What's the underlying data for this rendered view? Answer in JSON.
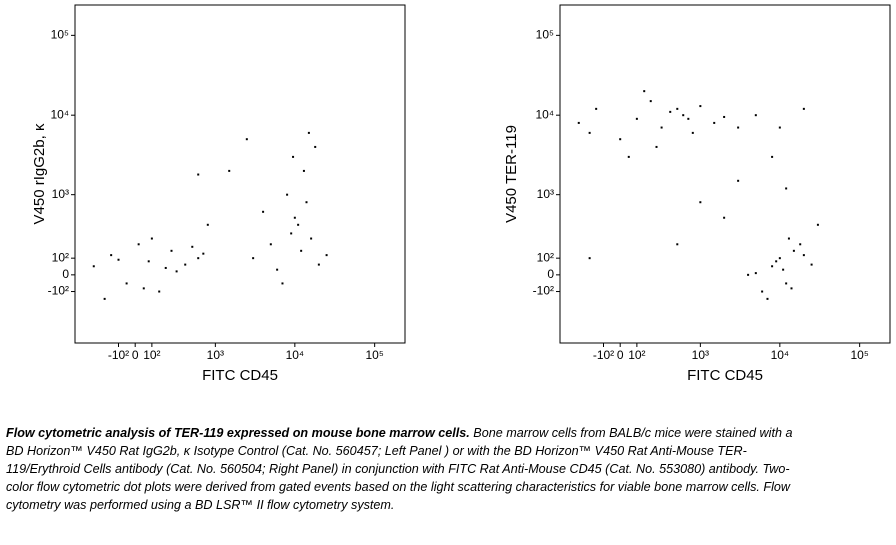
{
  "chart_data": [
    {
      "type": "scatter",
      "x_label": "FITC CD45",
      "y_label": "V450 rIgG2b, κ",
      "xscale": "biexponential",
      "yscale": "biexponential",
      "color": "#000000",
      "xlim": [
        -550,
        240000
      ],
      "ylim": [
        -700,
        240000
      ],
      "xticks": [
        {
          "value": -100,
          "label": "-10²"
        },
        0,
        {
          "value": 100,
          "label": "10²"
        },
        {
          "value": 1000,
          "label": "10³"
        },
        {
          "value": 10000,
          "label": "10⁴"
        },
        {
          "value": 100000,
          "label": "10⁵"
        }
      ],
      "yticks": [
        {
          "value": -100,
          "label": "-10²"
        },
        0,
        {
          "value": 100,
          "label": "10²"
        },
        {
          "value": 1000,
          "label": "10³"
        },
        {
          "value": 10000,
          "label": "10⁴"
        },
        {
          "value": 100000,
          "label": "10⁵"
        }
      ],
      "x": [
        -300,
        -150,
        -50,
        20,
        80,
        150,
        250,
        400,
        600,
        -200,
        100,
        300,
        500,
        -100,
        50,
        200,
        700,
        3000,
        5000,
        7000,
        9000,
        10000,
        12000,
        14000,
        16000,
        20000,
        8000,
        11000,
        13000,
        6000,
        25000,
        4000,
        15000,
        9500,
        1500,
        2500,
        600,
        800,
        18000
      ],
      "values": [
        50,
        120,
        -50,
        200,
        80,
        -100,
        150,
        60,
        100,
        -150,
        250,
        20,
        180,
        90,
        -80,
        40,
        130,
        100,
        200,
        -50,
        300,
        500,
        150,
        800,
        250,
        60,
        1000,
        400,
        2000,
        30,
        120,
        600,
        6000,
        3000,
        2000,
        5000,
        1800,
        400,
        4000
      ]
    },
    {
      "type": "scatter",
      "x_label": "FITC CD45",
      "y_label": "V450 TER-119",
      "xscale": "biexponential",
      "yscale": "biexponential",
      "color": "#000000",
      "xlim": [
        -550,
        240000
      ],
      "ylim": [
        -700,
        240000
      ],
      "xticks": [
        {
          "value": -100,
          "label": "-10²"
        },
        0,
        {
          "value": 100,
          "label": "10²"
        },
        {
          "value": 1000,
          "label": "10³"
        },
        {
          "value": 10000,
          "label": "10⁴"
        },
        {
          "value": 100000,
          "label": "10⁵"
        }
      ],
      "yticks": [
        {
          "value": -100,
          "label": "-10²"
        },
        0,
        {
          "value": 100,
          "label": "10²"
        },
        {
          "value": 1000,
          "label": "10³"
        },
        {
          "value": 10000,
          "label": "10⁴"
        },
        {
          "value": 100000,
          "label": "10⁵"
        }
      ],
      "x": [
        -300,
        -150,
        0,
        100,
        200,
        300,
        400,
        600,
        800,
        1000,
        1500,
        2000,
        3000,
        150,
        250,
        500,
        -200,
        50,
        700,
        5000,
        10000,
        20000,
        4000,
        6000,
        8000,
        10000,
        12000,
        15000,
        18000,
        7000,
        9000,
        11000,
        14000,
        20000,
        25000,
        5000,
        13000,
        2000,
        3000,
        8000,
        500,
        1000,
        12000,
        30000,
        -200
      ],
      "values": [
        8000,
        12000,
        5000,
        9000,
        15000,
        7000,
        11000,
        10000,
        6000,
        13000,
        8000,
        9500,
        7000,
        20000,
        4000,
        12000,
        6000,
        3000,
        9000,
        10000,
        7000,
        12000,
        0,
        -100,
        50,
        100,
        -50,
        150,
        200,
        -150,
        80,
        30,
        -80,
        120,
        60,
        10,
        250,
        500,
        1500,
        3000,
        200,
        800,
        1200,
        400,
        100
      ]
    }
  ],
  "caption": {
    "lead": "Flow cytometric analysis of TER-119 expressed on mouse bone marrow cells.",
    "text": "Bone marrow cells from BALB/c mice were stained with a BD Horizon™ V450 Rat IgG2b, κ Isotype Control (Cat. No. 560457; Left Panel ) or with the BD Horizon™ V450 Rat Anti-Mouse TER-119/Erythroid Cells  antibody (Cat. No. 560504; Right Panel) in conjunction with FITC Rat Anti-Mouse CD45 (Cat. No. 553080) antibody.  Two-color flow cytometric dot plots were derived from gated events based on the light scattering characteristics for viable bone marrow cells.  Flow cytometry was performed using a BD LSR™ II flow cytometry system."
  }
}
